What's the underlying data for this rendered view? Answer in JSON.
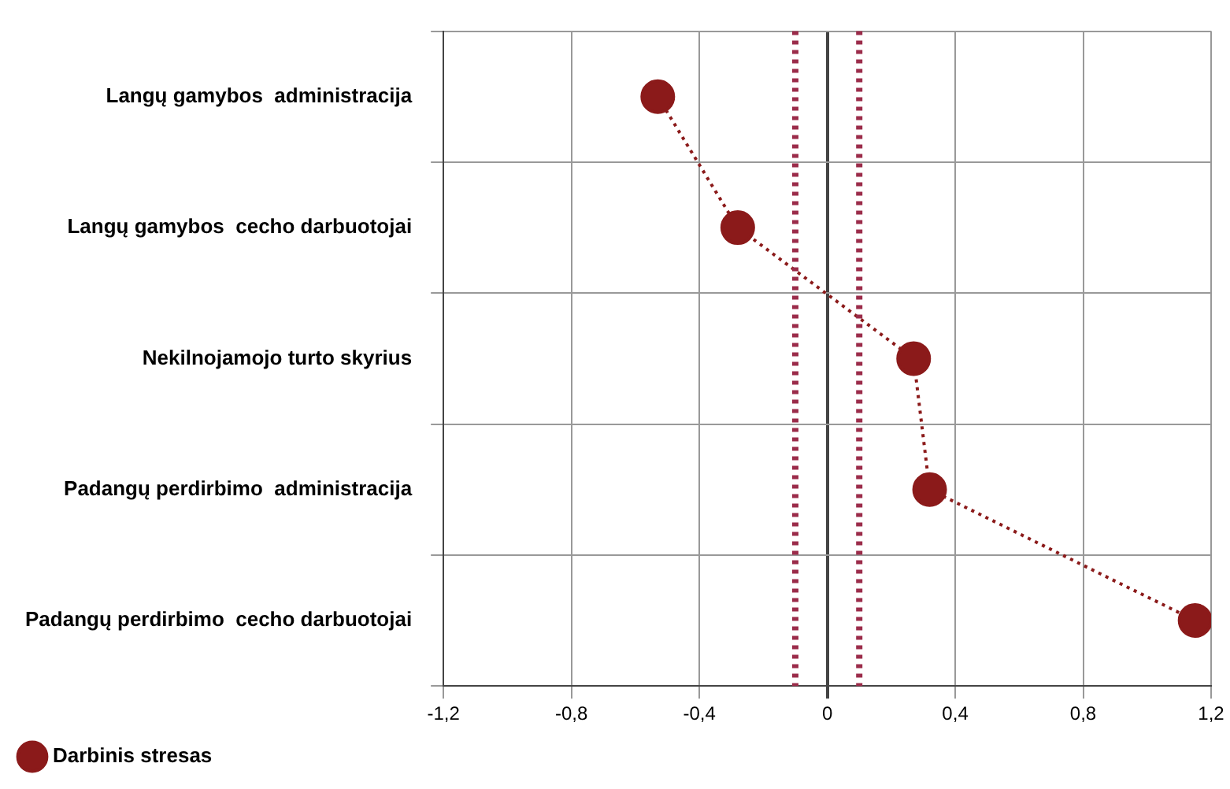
{
  "chart_data": {
    "type": "line",
    "orientation": "horizontal",
    "categories": [
      "Langų gamybos  administracija",
      "Langų gamybos  cecho darbuotojai",
      "Nekilnojamojo turto skyrius",
      "Padangų perdirbimo  administracija",
      "Padangų perdirbimo  cecho darbuotojai"
    ],
    "series": [
      {
        "name": "Darbinis stresas",
        "color": "#8b1a1a",
        "values": [
          -0.53,
          -0.28,
          0.27,
          0.32,
          1.15
        ]
      }
    ],
    "xlim": [
      -1.2,
      1.2
    ],
    "xticks": [
      {
        "value": -1.2,
        "label": "-1,2"
      },
      {
        "value": -0.8,
        "label": "-0,8"
      },
      {
        "value": -0.4,
        "label": "-0,4"
      },
      {
        "value": 0,
        "label": "0"
      },
      {
        "value": 0.4,
        "label": "0,4"
      },
      {
        "value": 0.8,
        "label": "0,8"
      },
      {
        "value": 1.2,
        "label": "1,2"
      }
    ],
    "ref_lines": [
      {
        "axis": "x",
        "value": -0.1,
        "color": "#9b2c4a",
        "line_style": "dotted"
      },
      {
        "axis": "x",
        "value": 0.1,
        "color": "#9b2c4a",
        "line_style": "dotted"
      }
    ],
    "grid": true,
    "legend": "bottom left",
    "marker": "circle",
    "line_style": "dotted"
  }
}
